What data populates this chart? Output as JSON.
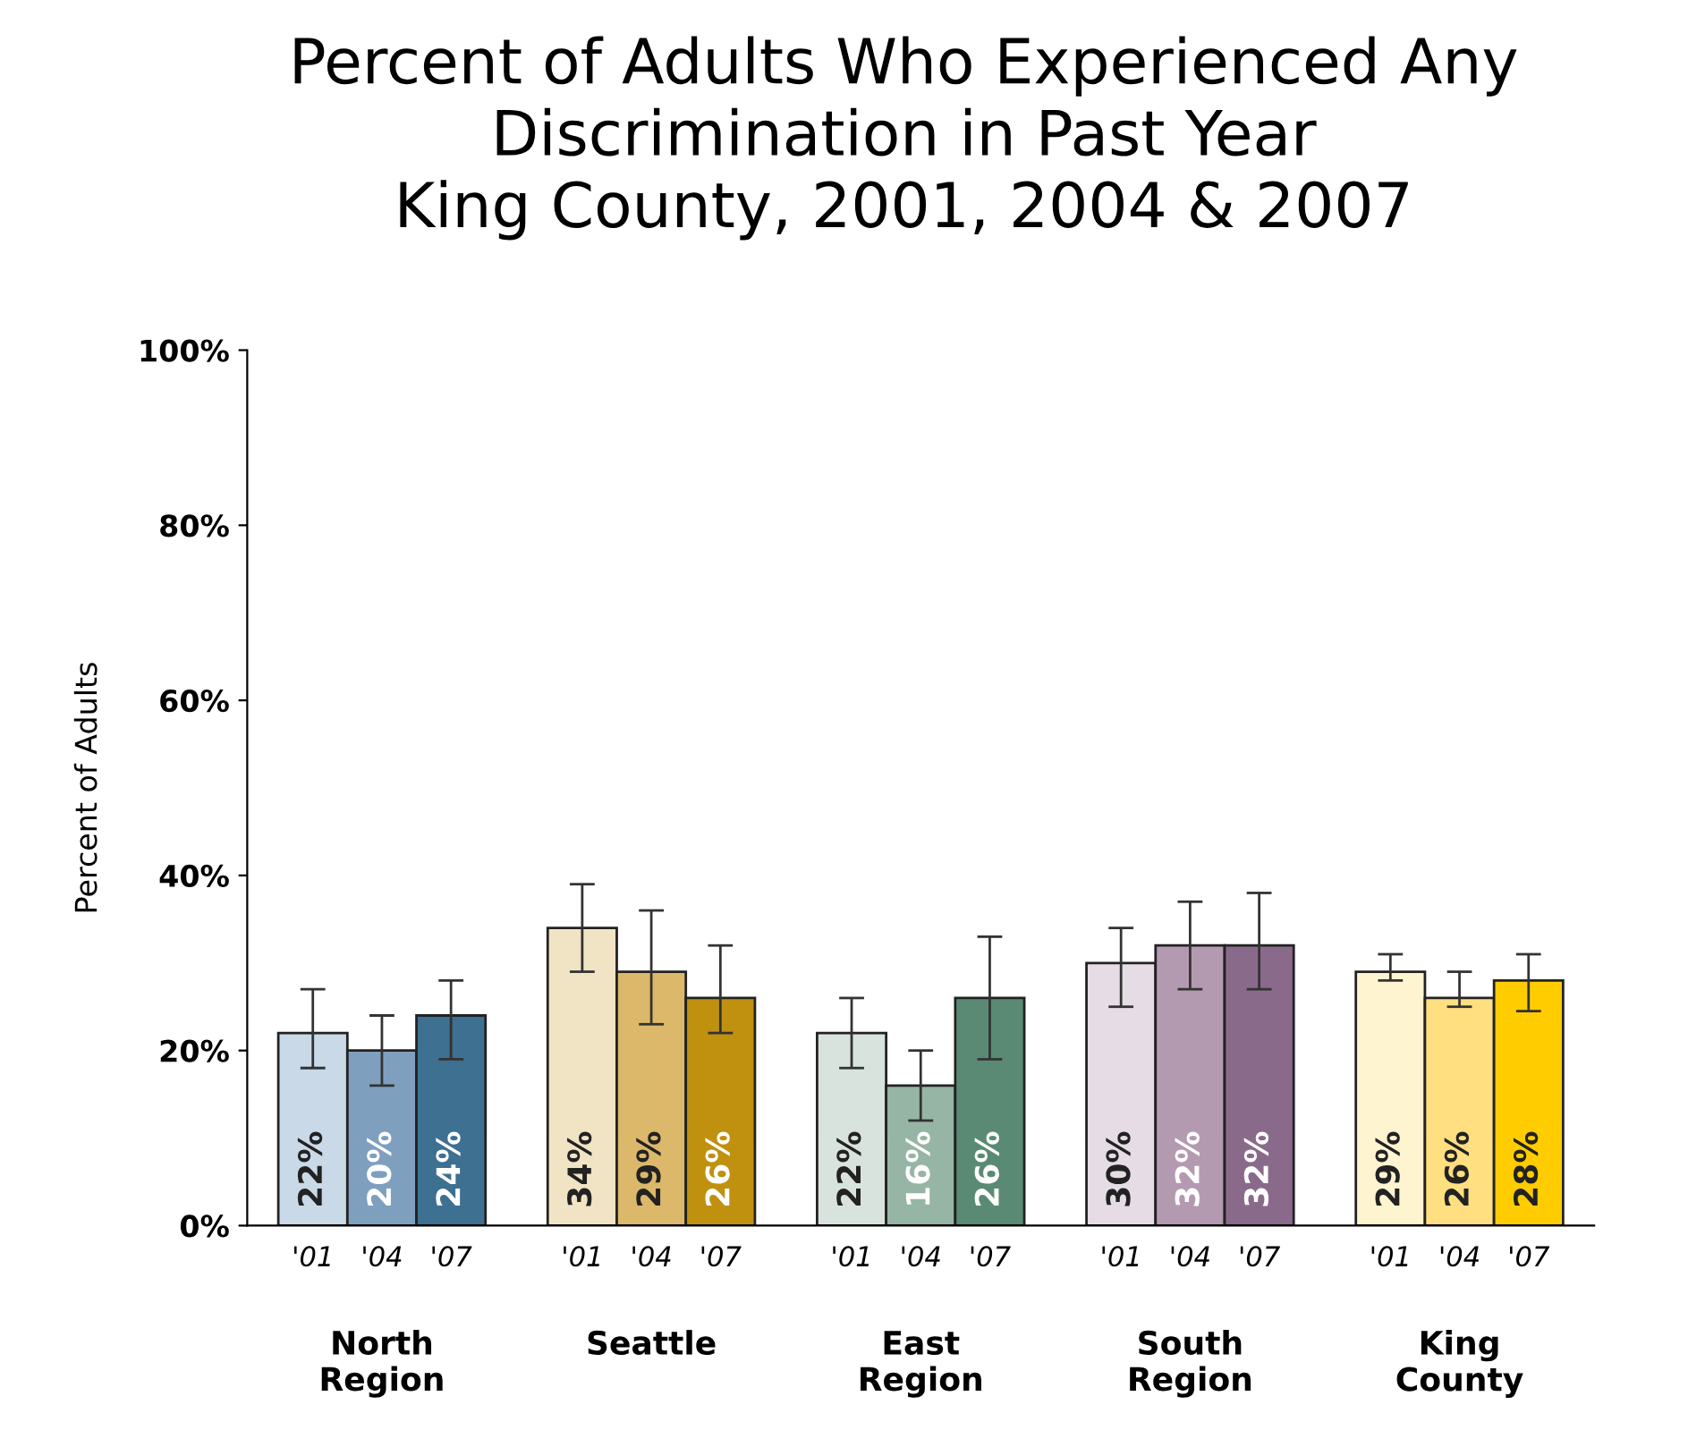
{
  "chart_data": {
    "type": "bar",
    "title": "Percent of Adults Who Experienced Any\nDiscrimination in Past Year\nKing County, 2001, 2004 & 2007",
    "ylabel": "Percent of Adults",
    "categories": [
      "'01",
      "'04",
      "'07",
      "'01",
      "'04",
      "'07",
      "'01",
      "'04",
      "'07",
      "'01",
      "'04",
      "'07",
      "'01",
      "'04",
      "'07"
    ],
    "annotations": [
      "North\nRegion",
      "Seattle",
      "East\nRegion",
      "South\nRegion",
      "King\nCounty"
    ],
    "values": [
      22,
      20,
      24,
      34,
      29,
      26,
      22,
      16,
      26,
      30,
      32,
      32,
      29,
      26,
      28
    ],
    "value_labels": [
      "22%",
      "20%",
      "24%",
      "34%",
      "29%",
      "26%",
      "22%",
      "16%",
      "26%",
      "30%",
      "32%",
      "32%",
      "29%",
      "26%",
      "28%"
    ],
    "errors": [
      [
        18,
        27
      ],
      [
        16,
        24
      ],
      [
        19,
        28
      ],
      [
        29,
        39
      ],
      [
        23,
        36
      ],
      [
        22,
        32
      ],
      [
        18,
        26
      ],
      [
        12,
        20
      ],
      [
        19,
        33
      ],
      [
        25,
        34
      ],
      [
        27,
        37
      ],
      [
        27,
        38
      ],
      [
        28,
        31
      ],
      [
        25,
        29
      ],
      [
        24.5,
        31
      ]
    ],
    "colors": [
      "#c9d9e8",
      "#7f9fbf",
      "#3d7091",
      "#f0e4c4",
      "#dcb86a",
      "#c0900f",
      "#d8e3dd",
      "#96b5a5",
      "#5a8a73",
      "#e6dce5",
      "#b49ab0",
      "#8a6a8a",
      "#fff4d0",
      "#ffdf80",
      "#ffcc00"
    ],
    "ylim": [
      0,
      100
    ],
    "yticks": [
      {
        "value": 0,
        "label": "0%"
      },
      {
        "value": 20,
        "label": "20%"
      },
      {
        "value": 40,
        "label": "40%"
      },
      {
        "value": 60,
        "label": "60%"
      },
      {
        "value": 80,
        "label": "80%"
      },
      {
        "value": 100,
        "label": "100%"
      }
    ],
    "grid": false,
    "legend": false
  }
}
